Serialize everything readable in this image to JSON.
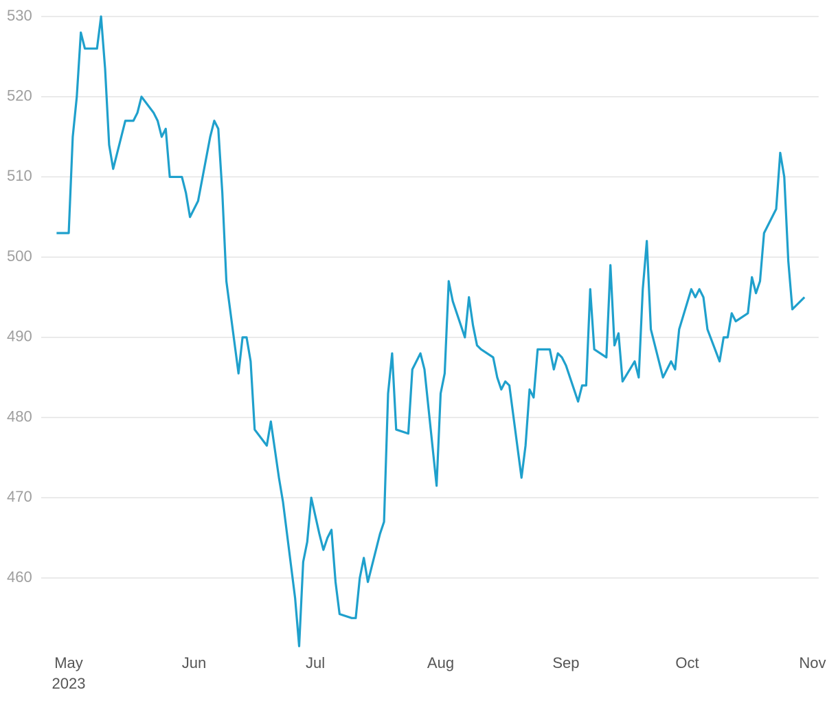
{
  "chart_data": {
    "type": "line",
    "color": "#1fa0cc",
    "grid": true,
    "xlim": [
      -5,
      185.5
    ],
    "xticks": [
      {
        "value": 0,
        "label": "May",
        "sublabel": "2023"
      },
      {
        "value": 31,
        "label": "Jun"
      },
      {
        "value": 61,
        "label": "Jul"
      },
      {
        "value": 92,
        "label": "Aug"
      },
      {
        "value": 123,
        "label": "Sep"
      },
      {
        "value": 153,
        "label": "Oct"
      },
      {
        "value": 184,
        "label": "Nov"
      }
    ],
    "ylim": [
      451,
      530
    ],
    "yticks": [
      460,
      470,
      480,
      490,
      500,
      510,
      520,
      530
    ],
    "x": [
      -3,
      0,
      1,
      2,
      3,
      4,
      7,
      8,
      9,
      10,
      11,
      14,
      16,
      17,
      18,
      21,
      22,
      23,
      24,
      25,
      28,
      29,
      30,
      32,
      35,
      36,
      37,
      38,
      39,
      42,
      43,
      44,
      45,
      46,
      49,
      50,
      52,
      53,
      56,
      57,
      58,
      59,
      60,
      62,
      63,
      64,
      65,
      66,
      67,
      70,
      71,
      72,
      73,
      74,
      77,
      78,
      79,
      80,
      81,
      84,
      85,
      87,
      88,
      91,
      92,
      93,
      94,
      95,
      98,
      99,
      100,
      101,
      102,
      105,
      106,
      107,
      108,
      109,
      112,
      113,
      114,
      115,
      116,
      119,
      120,
      121,
      122,
      123,
      126,
      127,
      128,
      129,
      130,
      133,
      134,
      135,
      136,
      137,
      140,
      141,
      142,
      143,
      144,
      147,
      149,
      150,
      151,
      154,
      155,
      156,
      157,
      158,
      161,
      162,
      163,
      164,
      165,
      168,
      169,
      170,
      171,
      172,
      175,
      176,
      177,
      178,
      179,
      182
    ],
    "values": [
      503,
      503,
      515,
      520,
      528,
      526,
      526,
      530,
      523.5,
      514,
      511,
      517,
      517,
      518,
      520,
      518,
      517,
      515,
      516,
      510,
      510,
      508,
      505,
      507,
      515,
      517,
      516,
      508,
      497,
      485.5,
      490,
      490,
      487,
      478.5,
      476.5,
      479.5,
      472.5,
      469.5,
      457.5,
      451.5,
      462,
      464.5,
      470,
      465.5,
      463.5,
      465,
      466,
      459.5,
      455.5,
      455,
      455,
      460,
      462.5,
      459.5,
      465.5,
      467,
      483,
      488,
      478.5,
      478,
      486,
      488,
      486,
      471.5,
      483,
      485.5,
      497,
      494.5,
      490,
      495,
      491.5,
      489,
      488.5,
      487.5,
      485,
      483.5,
      484.5,
      484,
      472.5,
      476.5,
      483.5,
      482.5,
      488.5,
      488.5,
      486,
      488,
      487.5,
      486.5,
      482,
      484,
      484,
      496,
      488.5,
      487.5,
      499,
      489,
      490.5,
      484.5,
      487,
      485,
      496,
      502,
      491,
      485,
      487,
      486,
      491,
      496,
      495,
      496,
      495,
      491,
      487,
      490,
      490,
      493,
      492,
      493,
      497.5,
      495.5,
      497,
      503,
      506,
      513,
      510,
      499.5,
      493.5,
      495
    ]
  }
}
